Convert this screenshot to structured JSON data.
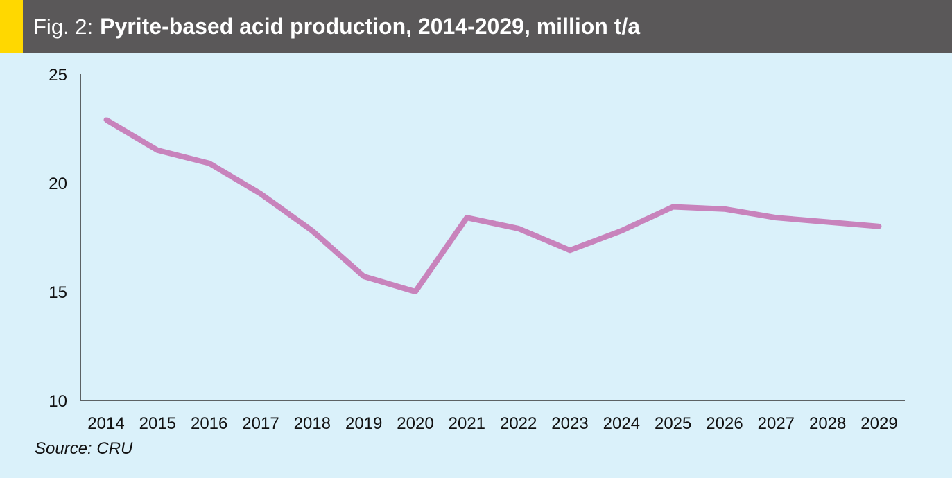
{
  "header": {
    "fig_label": "Fig. 2:",
    "title": "Pyrite-based acid production, 2014-2029, million t/a"
  },
  "source": "Source: CRU",
  "colors": {
    "background": "#daf1fa",
    "header": "#5a5859",
    "accent": "#ffd800",
    "line": "#c883bc",
    "axis": "#333333"
  },
  "chart_data": {
    "type": "line",
    "title": "Pyrite-based acid production, 2014-2029, million t/a",
    "xlabel": "",
    "ylabel": "",
    "categories": [
      "2014",
      "2015",
      "2016",
      "2017",
      "2018",
      "2019",
      "2020",
      "2021",
      "2022",
      "2023",
      "2024",
      "2025",
      "2026",
      "2027",
      "2028",
      "2029"
    ],
    "series": [
      {
        "values": [
          22.9,
          21.5,
          20.9,
          19.5,
          17.8,
          15.7,
          15.0,
          18.4,
          17.9,
          16.9,
          17.8,
          18.9,
          18.8,
          18.4,
          18.2,
          18.0
        ]
      }
    ],
    "ylim": [
      10,
      25
    ],
    "yticks": [
      "10",
      "15",
      "20",
      "25"
    ],
    "grid": false,
    "legend": "none"
  }
}
